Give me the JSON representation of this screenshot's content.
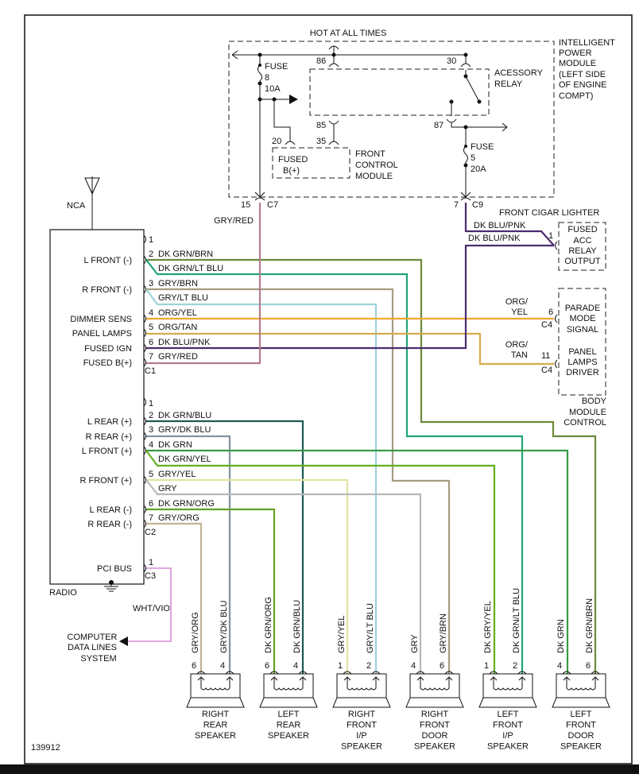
{
  "ipm": {
    "hot_label": "HOT AT ALL TIMES",
    "title_lines": [
      "INTELLIGENT",
      "POWER",
      "MODULE",
      "(LEFT SIDE",
      "OF ENGINE",
      "COMPT)"
    ],
    "fuse8": [
      "FUSE",
      "8",
      "10A"
    ],
    "fuse5": [
      "FUSE",
      "5",
      "20A"
    ],
    "pin86": "86",
    "pin30": "30",
    "pin85": "85",
    "pin35": "35",
    "pin20": "20",
    "pin87": "87",
    "relay_lines": [
      "ACESSORY",
      "RELAY"
    ],
    "fcm_box": [
      "FUSED",
      "B(+)"
    ],
    "fcm_label": [
      "FRONT",
      "CONTROL",
      "MODULE"
    ],
    "c7_pin": "15",
    "c7": "C7",
    "c9_pin": "7",
    "c9": "C9"
  },
  "radio": {
    "label": "RADIO",
    "antenna_label": "NCA",
    "c1": "C1",
    "c2": "C2",
    "c3": "C3",
    "functions": [
      "L FRONT (-)",
      "R FRONT (-)",
      "DIMMER SENS",
      "PANEL LAMPS",
      "FUSED IGN",
      "FUSED B(+)",
      "L REAR (+)",
      "R REAR (+)",
      "L FRONT (+)",
      "R FRONT (+)",
      "L REAR (-)",
      "R REAR (-)",
      "PCI BUS"
    ],
    "c1_pins": [
      "1",
      "2",
      "3",
      "4",
      "5",
      "6",
      "7"
    ],
    "c2_pins": [
      "1",
      "2",
      "3",
      "4",
      "5",
      "6",
      "7"
    ],
    "c3_pin": "1"
  },
  "wires": [
    {
      "label": "DK GRN/BRN",
      "color": "#6b8a3a"
    },
    {
      "label": "DK GRN/LT BLU",
      "color": "#1fa57c"
    },
    {
      "label": "GRY/BRN",
      "color": "#a39d82"
    },
    {
      "label": "GRY/LT BLU",
      "color": "#9fd2da"
    },
    {
      "label": "ORG/YEL",
      "color": "#f0a830"
    },
    {
      "label": "ORG/TAN",
      "color": "#d6ac4c"
    },
    {
      "label": "DK BLU/PNK",
      "color": "#4a2c6e"
    },
    {
      "label": "GRY/RED",
      "color": "#b47c8c"
    },
    {
      "label": "DK GRN/BLU",
      "color": "#1c5a52"
    },
    {
      "label": "GRY/DK BLU",
      "color": "#8492a2"
    },
    {
      "label": "DK GRN",
      "color": "#3a9a44"
    },
    {
      "label": "DK GRN/YEL",
      "color": "#62b022"
    },
    {
      "label": "GRY/YEL",
      "color": "#e2e2a4"
    },
    {
      "label": "GRY",
      "color": "#b8b8b8"
    },
    {
      "label": "DK GRN/ORG",
      "color": "#62a224"
    },
    {
      "label": "GRY/ORG",
      "color": "#c2b292"
    },
    {
      "label": "WHT/VIO",
      "color": "#d88ad8"
    },
    {
      "label": "DK BLU/PNK",
      "color": "#4a2c6e"
    }
  ],
  "cigar": {
    "title": "FRONT CIGAR LIGHTER",
    "pin": "1",
    "box": [
      "FUSED",
      "ACC",
      "RELAY",
      "OUTPUT"
    ]
  },
  "bcm": {
    "pin_a": "6",
    "conn_a": "C4",
    "wire_a": [
      "ORG/",
      "YEL"
    ],
    "pin_b": "11",
    "conn_b": "C4",
    "wire_b": [
      "ORG/",
      "TAN"
    ],
    "box_a": [
      "PARADE",
      "MODE",
      "SIGNAL"
    ],
    "box_b": [
      "PANEL",
      "LAMPS",
      "DRIVER"
    ],
    "label": [
      "BODY",
      "MODULE",
      "CONTROL"
    ]
  },
  "computer": {
    "lines": [
      "COMPUTER",
      "DATA LINES",
      "SYSTEM"
    ],
    "wire": "WHT/VIO"
  },
  "speakers": [
    {
      "name": [
        "RIGHT",
        "REAR",
        "SPEAKER"
      ],
      "pins": [
        "6",
        "4"
      ],
      "wires": [
        "GRY/ORG",
        "GRY/DK BLU"
      ]
    },
    {
      "name": [
        "LEFT",
        "REAR",
        "SPEAKER"
      ],
      "pins": [
        "6",
        "4"
      ],
      "wires": [
        "DK GRN/ORG",
        "DK GRN/BLU"
      ]
    },
    {
      "name": [
        "RIGHT",
        "FRONT",
        "I/P",
        "SPEAKER"
      ],
      "pins": [
        "1",
        "2"
      ],
      "wires": [
        "GRY/YEL",
        "GRY/LT BLU"
      ]
    },
    {
      "name": [
        "RIGHT",
        "FRONT",
        "DOOR",
        "SPEAKER"
      ],
      "pins": [
        "4",
        "6"
      ],
      "wires": [
        "GRY",
        "GRY/BRN"
      ]
    },
    {
      "name": [
        "LEFT",
        "FRONT",
        "I/P",
        "SPEAKER"
      ],
      "pins": [
        "1",
        "2"
      ],
      "wires": [
        "DK GRY/YEL",
        "DK GRN/LT BLU"
      ]
    },
    {
      "name": [
        "LEFT",
        "FRONT",
        "DOOR",
        "SPEAKER"
      ],
      "pins": [
        "4",
        "6"
      ],
      "wires": [
        "DK GRN",
        "DK GRN/BRN"
      ]
    }
  ],
  "figure_number": "139912"
}
